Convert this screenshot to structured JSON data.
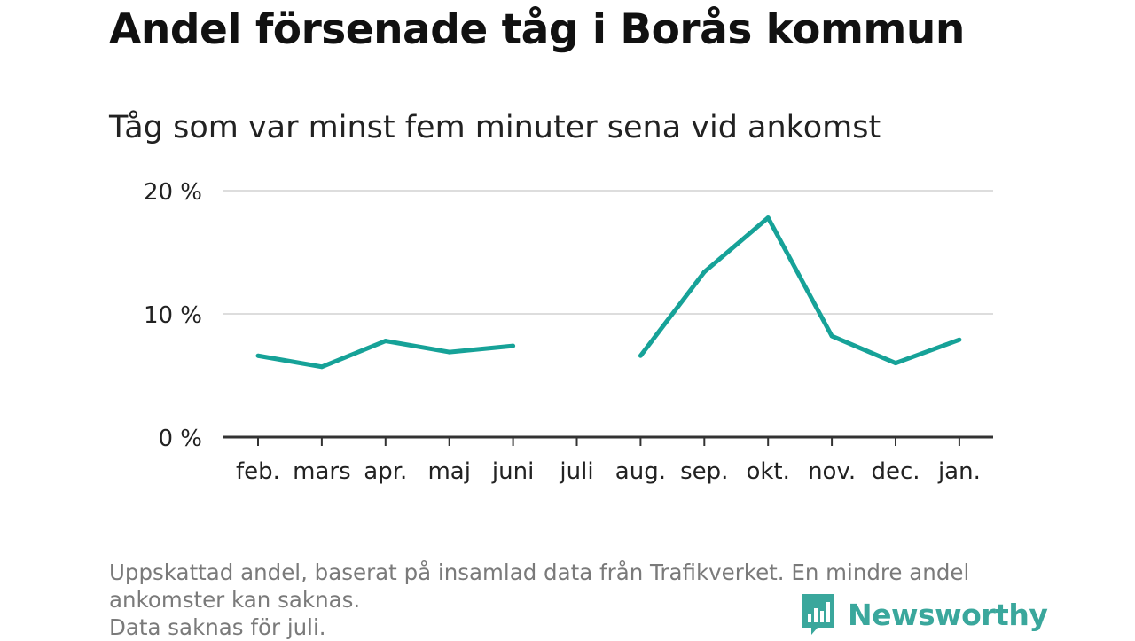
{
  "title": "Andel försenade tåg i Borås kommun",
  "subtitle": "Tåg som var minst fem minuter sena vid ankomst",
  "notes": [
    "Uppskattad andel, baserat på insamlad data från Trafikverket. En mindre andel",
    "ankomster kan saknas.",
    "Data saknas för juli."
  ],
  "brand": {
    "name": "Newsworthy",
    "icon": "bar-chart-speech-bubble-icon",
    "color": "#3aa79c"
  },
  "chart_data": {
    "type": "line",
    "title": "Andel försenade tåg i Borås kommun",
    "subtitle": "Tåg som var minst fem minuter sena vid ankomst",
    "xlabel": "",
    "ylabel": "",
    "categories": [
      "feb.",
      "mars",
      "apr.",
      "maj",
      "juni",
      "juli",
      "aug.",
      "sep.",
      "okt.",
      "nov.",
      "dec.",
      "jan."
    ],
    "series": [
      {
        "values": [
          6.6,
          5.7,
          7.8,
          6.9,
          7.4,
          null,
          6.6,
          13.4,
          17.8,
          8.2,
          6.0,
          7.9
        ],
        "color": "#16a298"
      }
    ],
    "ylim": [
      0,
      20
    ],
    "yticks": [
      0,
      10,
      20
    ],
    "ytick_labels": [
      "0 %",
      "10 %",
      "20 %"
    ],
    "grid": true,
    "axis_color": "#333333",
    "grid_color": "#dddddd"
  }
}
